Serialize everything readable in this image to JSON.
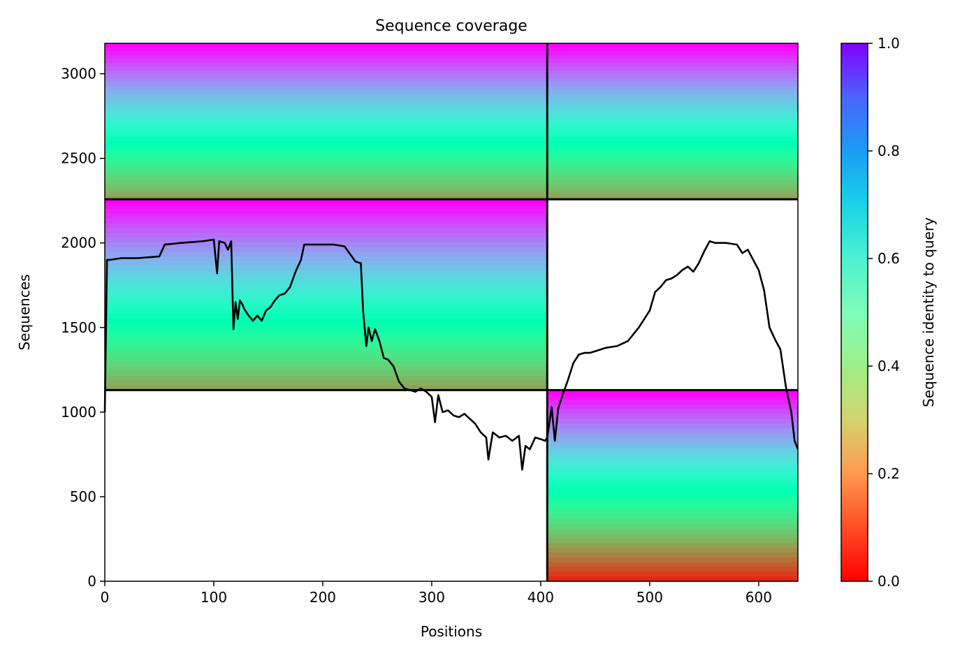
{
  "chart_data": {
    "type": "heatmap",
    "title": "Sequence coverage",
    "xlabel": "Positions",
    "ylabel": "Sequences",
    "xlim": [
      0,
      636
    ],
    "ylim": [
      0,
      3180
    ],
    "xticks": [
      0,
      100,
      200,
      300,
      400,
      500,
      600
    ],
    "yticks": [
      0,
      500,
      1000,
      1500,
      2000,
      2500,
      3000
    ],
    "colorbar": {
      "label": "Sequence identity to query",
      "ticks": [
        "0.0",
        "0.2",
        "0.4",
        "0.6",
        "0.8",
        "1.0"
      ],
      "range": [
        0,
        1
      ],
      "colormap": "rainbow_r"
    },
    "segment_boundaries": {
      "positions": [
        406
      ],
      "sequences": [
        1130,
        2258
      ]
    },
    "blocks": [
      {
        "x": [
          0,
          406
        ],
        "y": [
          2258,
          3180
        ],
        "identity_top": 1.0,
        "identity_bottom": 0.22
      },
      {
        "x": [
          406,
          636
        ],
        "y": [
          2258,
          3180
        ],
        "identity_top": 1.0,
        "identity_bottom": 0.22
      },
      {
        "x": [
          0,
          406
        ],
        "y": [
          1130,
          2258
        ],
        "identity_top": 1.0,
        "identity_bottom": 0.22
      },
      {
        "x": [
          406,
          636
        ],
        "y": [
          0,
          1130
        ],
        "identity_top": 1.0,
        "identity_bottom": 0.05
      }
    ],
    "coverage_line": {
      "x": [
        0,
        2,
        5,
        15,
        30,
        50,
        55,
        70,
        90,
        100,
        103,
        105,
        110,
        113,
        116,
        118,
        120,
        122,
        124,
        126,
        128,
        132,
        136,
        140,
        144,
        148,
        152,
        156,
        160,
        165,
        170,
        175,
        180,
        183,
        190,
        200,
        210,
        220,
        230,
        235,
        237,
        240,
        242,
        245,
        248,
        252,
        256,
        260,
        265,
        270,
        275,
        280,
        285,
        290,
        295,
        300,
        303,
        306,
        310,
        315,
        320,
        325,
        330,
        335,
        340,
        345,
        350,
        352,
        356,
        362,
        368,
        374,
        380,
        383,
        386,
        390,
        395,
        400,
        404,
        406,
        410,
        413,
        416,
        420,
        425,
        430,
        435,
        440,
        445,
        450,
        460,
        470,
        480,
        490,
        500,
        505,
        510,
        515,
        520,
        525,
        530,
        535,
        540,
        545,
        550,
        555,
        560,
        570,
        580,
        585,
        590,
        600,
        605,
        610,
        615,
        620,
        625,
        630,
        633,
        636
      ],
      "y": [
        1000,
        1900,
        1900,
        1910,
        1910,
        1920,
        1990,
        2000,
        2010,
        2020,
        1820,
        2010,
        2000,
        1960,
        2010,
        1490,
        1650,
        1550,
        1660,
        1640,
        1610,
        1570,
        1540,
        1570,
        1540,
        1600,
        1620,
        1660,
        1690,
        1700,
        1740,
        1830,
        1900,
        1990,
        1990,
        1990,
        1990,
        1980,
        1890,
        1880,
        1600,
        1390,
        1500,
        1420,
        1490,
        1420,
        1320,
        1310,
        1270,
        1180,
        1140,
        1130,
        1120,
        1140,
        1120,
        1090,
        940,
        1100,
        1000,
        1010,
        980,
        970,
        990,
        960,
        930,
        880,
        850,
        720,
        880,
        850,
        860,
        830,
        860,
        660,
        800,
        780,
        850,
        840,
        830,
        850,
        1030,
        830,
        1020,
        1100,
        1190,
        1290,
        1340,
        1350,
        1350,
        1360,
        1380,
        1390,
        1420,
        1500,
        1600,
        1710,
        1740,
        1780,
        1790,
        1810,
        1840,
        1860,
        1830,
        1880,
        1950,
        2010,
        2000,
        2000,
        1990,
        1940,
        1960,
        1840,
        1720,
        1500,
        1430,
        1370,
        1150,
        1000,
        830,
        780
      ]
    }
  }
}
